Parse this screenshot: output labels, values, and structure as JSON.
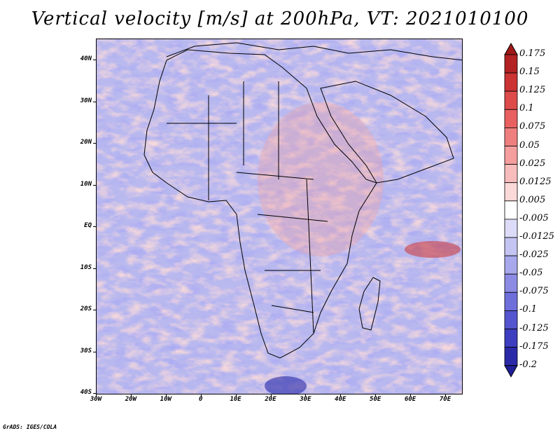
{
  "title": "Vertical velocity [m/s] at 200hPa, VT: 2021010100",
  "footer": "GrADS: IGES/COLA",
  "map": {
    "lon_range": [
      -30,
      75
    ],
    "lat_range": [
      -40,
      45
    ],
    "variable": "vertical velocity",
    "level": "200hPa",
    "valid_time": "2021010100",
    "y_axis_labels": [
      "40N",
      "30N",
      "20N",
      "10N",
      "EQ",
      "10S",
      "20S",
      "30S",
      "40S"
    ],
    "x_axis_labels": [
      "30W",
      "20W",
      "10W",
      "0",
      "10E",
      "20E",
      "30E",
      "40E",
      "50E",
      "60E",
      "70E"
    ]
  },
  "legend": {
    "levels": [
      "0.175",
      "0.15",
      "0.125",
      "0.1",
      "0.075",
      "0.05",
      "0.025",
      "0.0125",
      "0.005",
      "-0.005",
      "-0.0125",
      "-0.025",
      "-0.05",
      "-0.075",
      "-0.1",
      "-0.125",
      "-0.175",
      "-0.2"
    ],
    "colors": [
      "#b22222",
      "#cc3333",
      "#dd4b4b",
      "#e86060",
      "#ef7f7f",
      "#f49e9e",
      "#f8bcbc",
      "#fbd9d9",
      "#ffffff",
      "#dcdcf8",
      "#c4c4f2",
      "#a8a8ec",
      "#8b8be4",
      "#6f6fdc",
      "#5555cf",
      "#3e3ec0",
      "#2a2aa8"
    ],
    "top_color": "#a01818",
    "bottom_color": "#1f1f99"
  }
}
